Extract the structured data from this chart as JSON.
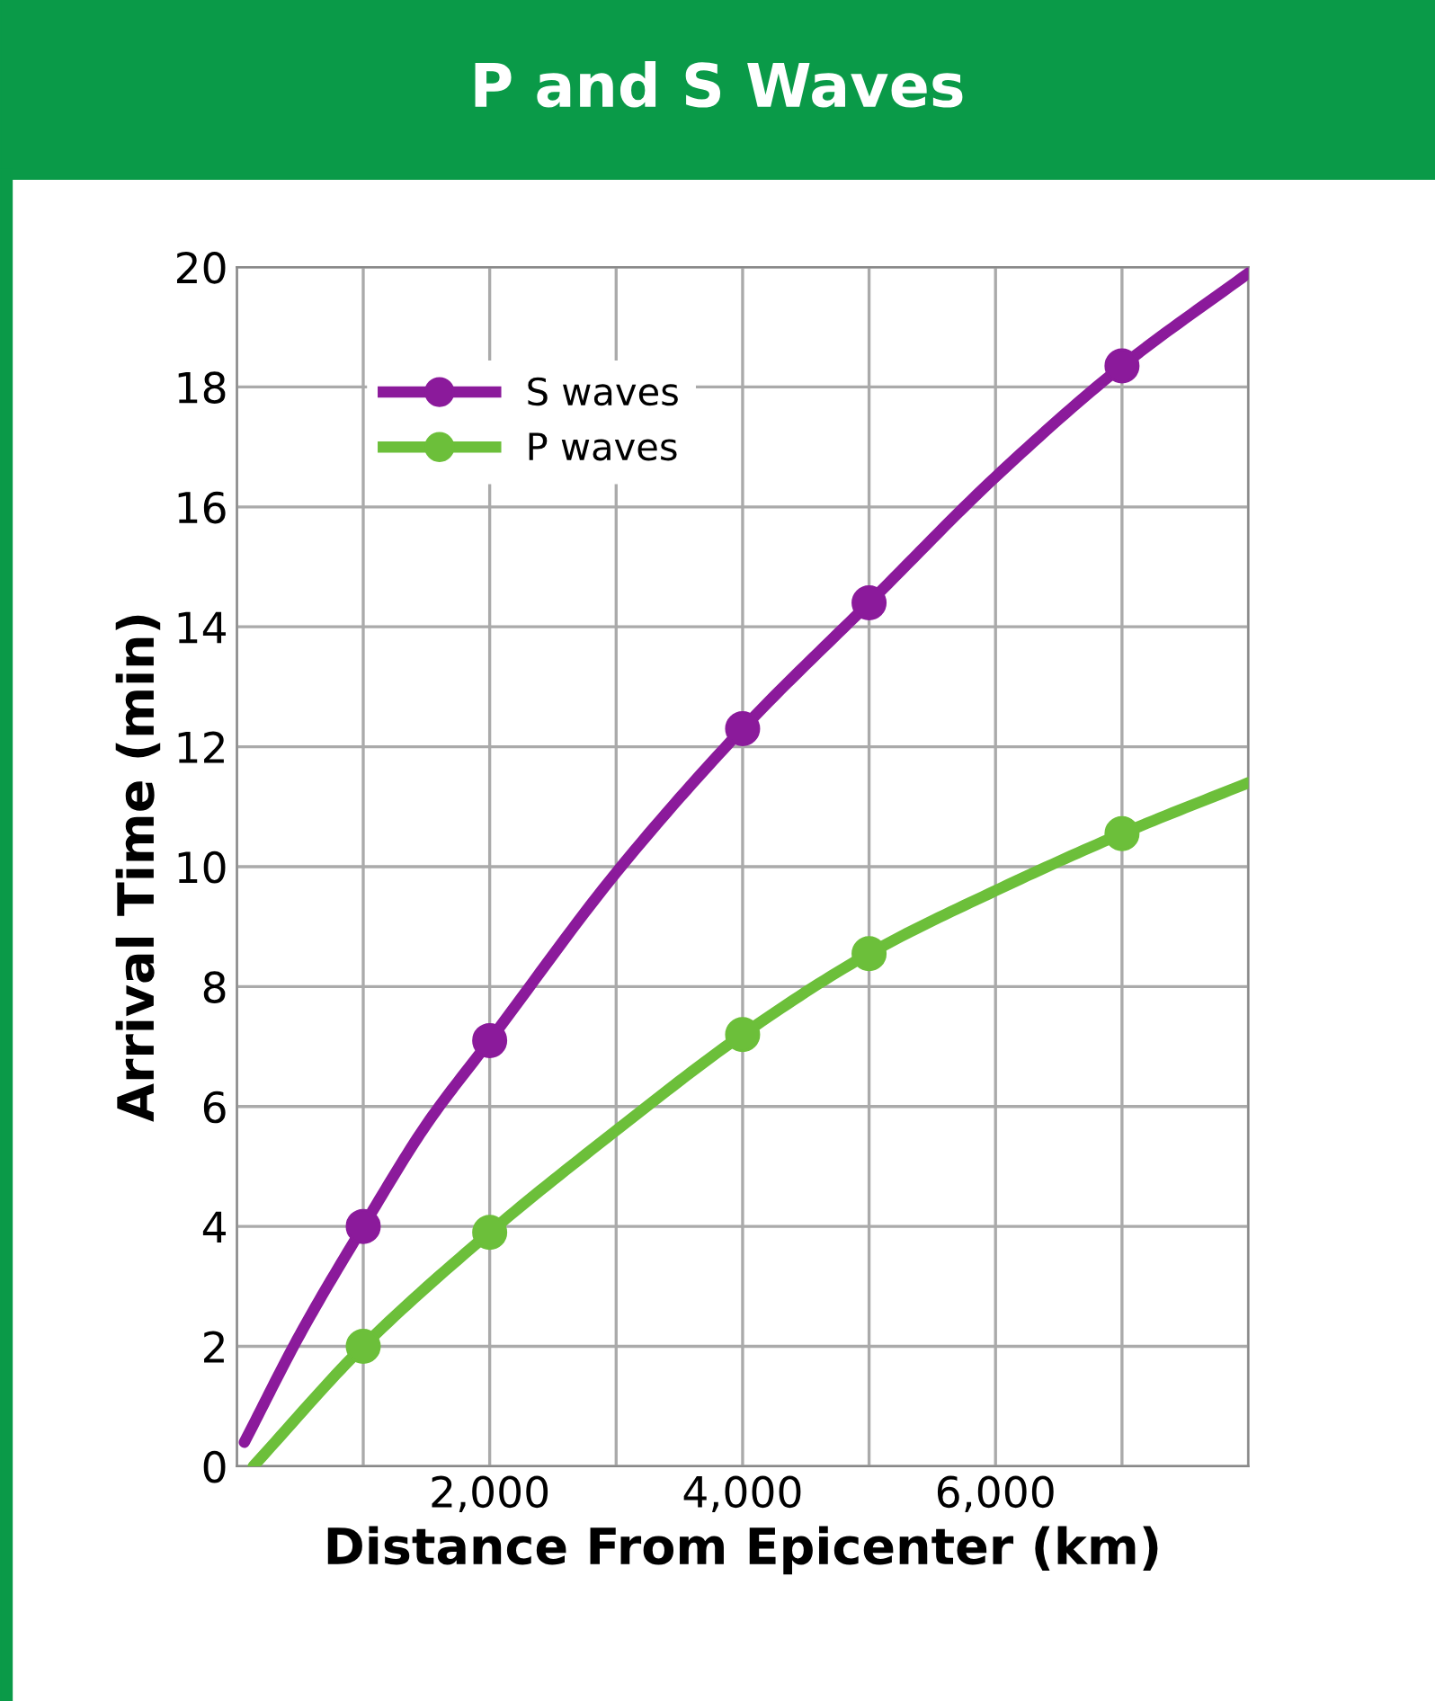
{
  "chart_data": {
    "type": "line",
    "title": "P and S Waves",
    "xlabel": "Distance From Epicenter (km)",
    "ylabel": "Arrival Time (min)",
    "xlim": [
      0,
      8000
    ],
    "ylim": [
      0,
      20
    ],
    "xticks": [
      {
        "value": 0,
        "label": null
      },
      {
        "value": 1000,
        "label": null
      },
      {
        "value": 2000,
        "label": "2,000"
      },
      {
        "value": 3000,
        "label": null
      },
      {
        "value": 4000,
        "label": "4,000"
      },
      {
        "value": 5000,
        "label": null
      },
      {
        "value": 6000,
        "label": "6,000"
      },
      {
        "value": 7000,
        "label": null
      },
      {
        "value": 8000,
        "label": null
      }
    ],
    "yticks": [
      0,
      2,
      4,
      6,
      8,
      10,
      12,
      14,
      16,
      18,
      20
    ],
    "grid": true,
    "legend": "top left",
    "marker": "circle",
    "line_style": "solid",
    "series": [
      {
        "name": "S waves",
        "color": "#8b1a9b",
        "marker": "none",
        "x": [
          60,
          500,
          1000,
          1500,
          2000,
          3000,
          4000,
          5000,
          6000,
          7000,
          8000
        ],
        "values": [
          0.4,
          2.2,
          4.0,
          5.7,
          7.1,
          9.9,
          12.3,
          14.4,
          16.5,
          18.35,
          19.9
        ]
      },
      {
        "name": "P waves",
        "color": "#6cbf3a",
        "marker": "none",
        "x": [
          130,
          1000,
          2000,
          3000,
          4000,
          5000,
          6000,
          7000,
          8000
        ],
        "values": [
          0,
          2.0,
          3.9,
          5.6,
          7.2,
          8.55,
          9.6,
          10.55,
          11.4
        ]
      },
      {
        "type": "scatter",
        "color": "#8b1a9b",
        "x": [
          1000,
          2000,
          4000,
          5000,
          7000
        ],
        "values": [
          4.0,
          7.1,
          12.3,
          14.4,
          18.35
        ]
      },
      {
        "type": "scatter",
        "color": "#6cbf3a",
        "x": [
          1000,
          2000,
          4000,
          5000,
          7000
        ],
        "values": [
          2.0,
          3.9,
          7.2,
          8.55,
          10.55
        ]
      }
    ]
  }
}
